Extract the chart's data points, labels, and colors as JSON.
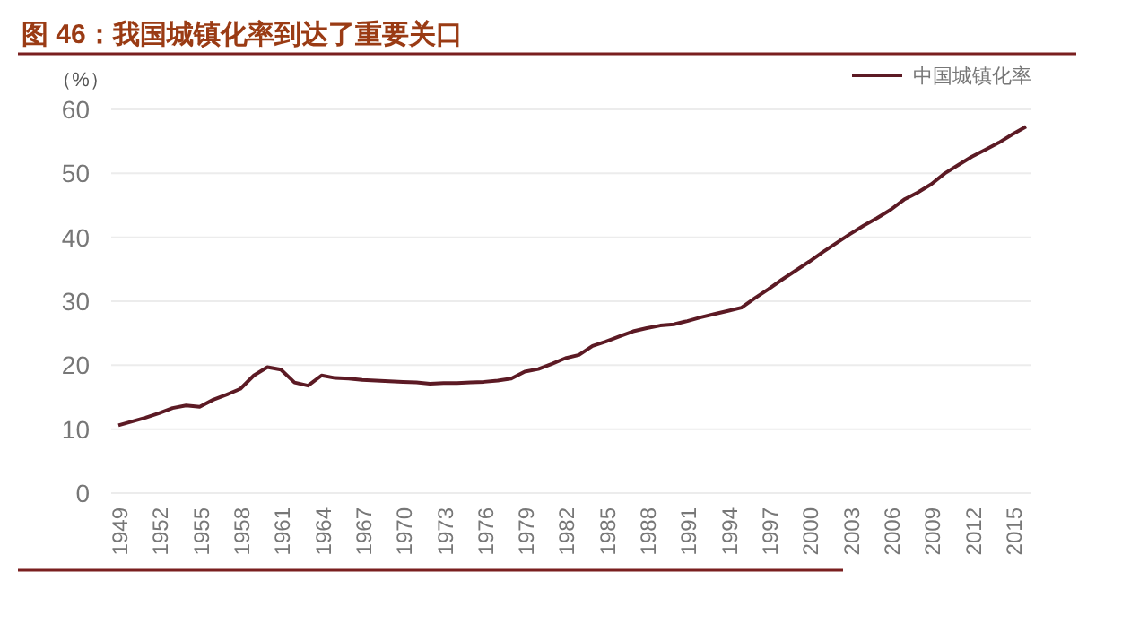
{
  "chart_data": {
    "type": "line",
    "title": "图 46：我国城镇化率到达了重要关口",
    "ylabel": "（%）",
    "categories": [
      "1949",
      null,
      null,
      "1952",
      null,
      null,
      "1955",
      null,
      null,
      "1958",
      null,
      null,
      "1961",
      null,
      null,
      "1964",
      null,
      null,
      "1967",
      null,
      null,
      "1970",
      null,
      null,
      "1973",
      null,
      null,
      "1976",
      null,
      null,
      "1979",
      null,
      null,
      "1982",
      null,
      null,
      "1985",
      null,
      null,
      "1988",
      null,
      null,
      "1991",
      null,
      null,
      "1994",
      null,
      null,
      "1997",
      null,
      null,
      "2000",
      null,
      null,
      "2003",
      null,
      null,
      "2006",
      null,
      null,
      "2009",
      null,
      null,
      "2012",
      null,
      null,
      "2015",
      null
    ],
    "series": [
      {
        "name": "中国城镇化率",
        "color": "#5c1a24",
        "values": [
          10.6,
          11.2,
          11.8,
          12.5,
          13.3,
          13.7,
          13.5,
          14.6,
          15.4,
          16.3,
          18.4,
          19.7,
          19.3,
          17.3,
          16.8,
          18.4,
          18.0,
          17.9,
          17.7,
          17.6,
          17.5,
          17.4,
          17.3,
          17.1,
          17.2,
          17.2,
          17.3,
          17.4,
          17.6,
          17.9,
          19.0,
          19.4,
          20.2,
          21.1,
          21.6,
          23.0,
          23.7,
          24.5,
          25.3,
          25.8,
          26.2,
          26.4,
          26.9,
          27.5,
          28.0,
          28.5,
          29.0,
          30.5,
          31.9,
          33.4,
          34.8,
          36.2,
          37.7,
          39.1,
          40.5,
          41.8,
          43.0,
          44.3,
          45.9,
          47.0,
          48.3,
          50.0,
          51.3,
          52.6,
          53.7,
          54.8,
          56.1,
          57.3
        ]
      }
    ],
    "ylim": [
      0,
      60
    ],
    "yticks": [
      0,
      10,
      20,
      30,
      40,
      50,
      60
    ],
    "grid": "y",
    "legend": "top right",
    "marker": "none",
    "line_style": "solid"
  }
}
